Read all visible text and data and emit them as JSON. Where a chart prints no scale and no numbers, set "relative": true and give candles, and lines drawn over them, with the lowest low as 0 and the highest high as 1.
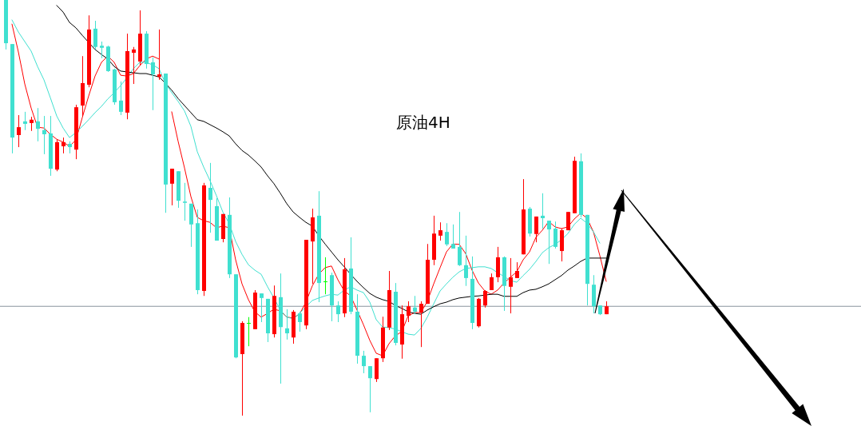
{
  "chart_data": {
    "type": "candlestick",
    "title": "原油4H",
    "relative": true,
    "categories": [
      null,
      null,
      null,
      null,
      null,
      null,
      null,
      null,
      null,
      null,
      null,
      null,
      null,
      null,
      null,
      null,
      null,
      null,
      null,
      null,
      null,
      null,
      null,
      null,
      null,
      null,
      null,
      null,
      null,
      null,
      null,
      null,
      null,
      null,
      null,
      null,
      null,
      null,
      null,
      null,
      null,
      null,
      null,
      null,
      null,
      null,
      null,
      null,
      null,
      null,
      null,
      null,
      null,
      null,
      null,
      null,
      null,
      null,
      null,
      null,
      null,
      null,
      null,
      null,
      null,
      null,
      null,
      null,
      null,
      null,
      null,
      null,
      null,
      null,
      null,
      null,
      null,
      null,
      null,
      null,
      null,
      null,
      null,
      null,
      null,
      null,
      null,
      null,
      null,
      null,
      null,
      null,
      null,
      null,
      null
    ],
    "ohlc": [
      [
        1.0,
        1.0,
        0.881,
        0.896
      ],
      [
        0.894,
        0.894,
        0.631,
        0.669
      ],
      [
        0.675,
        0.723,
        0.646,
        0.694
      ],
      [
        0.708,
        0.731,
        0.687,
        0.702
      ],
      [
        0.704,
        0.719,
        0.685,
        0.712
      ],
      [
        0.708,
        0.74,
        0.66,
        0.69
      ],
      [
        0.687,
        0.721,
        0.629,
        0.677
      ],
      [
        0.679,
        0.721,
        0.577,
        0.594
      ],
      [
        0.592,
        0.665,
        0.588,
        0.658
      ],
      [
        0.648,
        0.669,
        0.631,
        0.658
      ],
      [
        0.654,
        0.66,
        0.631,
        0.646
      ],
      [
        0.64,
        0.748,
        0.617,
        0.742
      ],
      [
        0.746,
        0.865,
        0.721,
        0.8
      ],
      [
        0.796,
        0.963,
        0.79,
        0.929
      ],
      [
        0.931,
        0.95,
        0.881,
        0.887
      ],
      [
        0.89,
        0.9,
        0.86,
        0.885
      ],
      [
        0.888,
        0.89,
        0.827,
        0.829
      ],
      [
        0.833,
        0.835,
        0.748,
        0.754
      ],
      [
        0.758,
        0.804,
        0.723,
        0.731
      ],
      [
        0.729,
        0.919,
        0.713,
        0.877
      ],
      [
        0.873,
        0.887,
        0.798,
        0.881
      ],
      [
        0.852,
        0.975,
        0.842,
        0.919
      ],
      [
        0.919,
        0.925,
        0.835,
        0.846
      ],
      [
        0.85,
        0.862,
        0.735,
        0.821
      ],
      [
        0.815,
        0.929,
        0.808,
        0.821
      ],
      [
        0.823,
        0.823,
        0.488,
        0.556
      ],
      [
        0.558,
        0.594,
        0.506,
        0.594
      ],
      [
        0.588,
        0.588,
        0.5,
        0.517
      ],
      [
        0.515,
        0.56,
        0.469,
        0.512
      ],
      [
        0.51,
        0.51,
        0.406,
        0.46
      ],
      [
        0.463,
        0.496,
        0.292,
        0.302
      ],
      [
        0.3,
        0.56,
        0.288,
        0.554
      ],
      [
        0.548,
        0.608,
        0.44,
        0.519
      ],
      [
        0.504,
        0.523,
        0.421,
        0.421
      ],
      [
        0.425,
        0.485,
        0.417,
        0.485
      ],
      [
        0.483,
        0.525,
        0.331,
        0.34
      ],
      [
        0.34,
        0.34,
        0.138,
        0.14
      ],
      [
        0.148,
        0.227,
        0.0,
        0.223
      ],
      [
        0.223,
        0.237,
        0.167,
        0.223
      ],
      [
        0.208,
        0.302,
        0.208,
        0.296
      ],
      [
        0.294,
        0.294,
        0.225,
        0.283
      ],
      [
        0.281,
        0.281,
        0.177,
        0.198
      ],
      [
        0.196,
        0.313,
        0.188,
        0.288
      ],
      [
        0.285,
        0.342,
        0.077,
        0.213
      ],
      [
        0.21,
        0.256,
        0.183,
        0.198
      ],
      [
        0.188,
        0.254,
        0.173,
        0.25
      ],
      [
        0.246,
        0.25,
        0.202,
        0.225
      ],
      [
        0.217,
        0.423,
        0.208,
        0.423
      ],
      [
        0.419,
        0.498,
        0.317,
        0.477
      ],
      [
        0.481,
        0.54,
        0.273,
        0.319
      ],
      [
        0.323,
        0.381,
        0.292,
        0.323
      ],
      [
        0.338,
        0.344,
        0.227,
        0.265
      ],
      [
        0.265,
        0.275,
        0.225,
        0.244
      ],
      [
        0.246,
        0.379,
        0.237,
        0.352
      ],
      [
        0.354,
        0.429,
        0.244,
        0.25
      ],
      [
        0.25,
        0.292,
        0.125,
        0.144
      ],
      [
        0.144,
        0.156,
        0.102,
        0.119
      ],
      [
        0.119,
        0.119,
        0.008,
        0.09
      ],
      [
        0.088,
        0.138,
        0.081,
        0.138
      ],
      [
        0.138,
        0.238,
        0.129,
        0.212
      ],
      [
        0.212,
        0.348,
        0.206,
        0.302
      ],
      [
        0.298,
        0.319,
        0.169,
        0.175
      ],
      [
        0.171,
        0.265,
        0.137,
        0.244
      ],
      [
        0.24,
        0.275,
        0.225,
        0.263
      ],
      [
        0.26,
        0.288,
        0.244,
        0.25
      ],
      [
        0.248,
        0.275,
        0.165,
        0.269
      ],
      [
        0.269,
        0.413,
        0.269,
        0.375
      ],
      [
        0.375,
        0.481,
        0.362,
        0.438
      ],
      [
        0.433,
        0.465,
        0.421,
        0.446
      ],
      [
        0.442,
        0.463,
        0.408,
        0.412
      ],
      [
        0.413,
        0.46,
        0.402,
        0.402
      ],
      [
        0.406,
        0.49,
        0.36,
        0.362
      ],
      [
        0.362,
        0.433,
        0.312,
        0.331
      ],
      [
        0.329,
        0.383,
        0.208,
        0.223
      ],
      [
        0.215,
        0.283,
        0.212,
        0.281
      ],
      [
        0.265,
        0.302,
        0.26,
        0.3
      ],
      [
        0.302,
        0.342,
        0.302,
        0.333
      ],
      [
        0.333,
        0.406,
        0.321,
        0.381
      ],
      [
        0.381,
        0.383,
        0.252,
        0.312
      ],
      [
        0.31,
        0.379,
        0.246,
        0.333
      ],
      [
        0.331,
        0.369,
        0.331,
        0.348
      ],
      [
        0.388,
        0.569,
        0.388,
        0.496
      ],
      [
        0.498,
        0.502,
        0.431,
        0.438
      ],
      [
        0.437,
        0.479,
        0.417,
        0.479
      ],
      [
        0.481,
        0.535,
        0.45,
        0.475
      ],
      [
        0.469,
        0.469,
        0.365,
        0.448
      ],
      [
        0.45,
        0.467,
        0.402,
        0.406
      ],
      [
        0.396,
        0.45,
        0.371,
        0.446
      ],
      [
        0.446,
        0.49,
        0.446,
        0.49
      ],
      [
        0.487,
        0.623,
        0.487,
        0.613
      ],
      [
        0.612,
        0.631,
        0.477,
        0.483
      ],
      [
        0.483,
        0.483,
        0.265,
        0.317
      ],
      [
        0.315,
        0.338,
        0.246,
        0.263
      ],
      [
        0.265,
        0.265,
        0.242,
        0.244
      ],
      [
        0.244,
        0.275,
        0.244,
        0.263
      ]
    ],
    "colors": [
      "#40e0d0",
      "#40e0d0",
      "#ff0000",
      "#40e0d0",
      "#ff0000",
      "#40e0d0",
      "#40e0d0",
      "#40e0d0",
      "#ff0000",
      "#ff0000",
      "#40e0d0",
      "#ff0000",
      "#ff0000",
      "#ff0000",
      "#40e0d0",
      "#40e0d0",
      "#40e0d0",
      "#40e0d0",
      "#40e0d0",
      "#ff0000",
      "#ff0000",
      "#ff0000",
      "#40e0d0",
      "#40e0d0",
      "#ff0000",
      "#40e0d0",
      "#ff0000",
      "#40e0d0",
      "#40e0d0",
      "#40e0d0",
      "#40e0d0",
      "#ff0000",
      "#40e0d0",
      "#40e0d0",
      "#ff0000",
      "#40e0d0",
      "#40e0d0",
      "#ff0000",
      "#00ff00",
      "#ff0000",
      "#40e0d0",
      "#40e0d0",
      "#ff0000",
      "#40e0d0",
      "#40e0d0",
      "#ff0000",
      "#40e0d0",
      "#ff0000",
      "#ff0000",
      "#40e0d0",
      "#00ff00",
      "#40e0d0",
      "#40e0d0",
      "#ff0000",
      "#40e0d0",
      "#40e0d0",
      "#40e0d0",
      "#40e0d0",
      "#ff0000",
      "#ff0000",
      "#ff0000",
      "#40e0d0",
      "#ff0000",
      "#ff0000",
      "#40e0d0",
      "#ff0000",
      "#ff0000",
      "#ff0000",
      "#ff0000",
      "#40e0d0",
      "#40e0d0",
      "#40e0d0",
      "#40e0d0",
      "#40e0d0",
      "#ff0000",
      "#ff0000",
      "#ff0000",
      "#ff0000",
      "#40e0d0",
      "#ff0000",
      "#ff0000",
      "#ff0000",
      "#40e0d0",
      "#ff0000",
      "#40e0d0",
      "#40e0d0",
      "#40e0d0",
      "#ff0000",
      "#ff0000",
      "#ff0000",
      "#40e0d0",
      "#40e0d0",
      "#40e0d0",
      "#40e0d0",
      "#ff0000"
    ],
    "series": [
      {
        "type": "line",
        "color": "#ff0000",
        "values": [
          null,
          0.942,
          0.875,
          0.798,
          0.74,
          0.694,
          0.692,
          0.677,
          0.665,
          0.658,
          0.648,
          0.663,
          0.717,
          0.769,
          0.817,
          0.85,
          0.865,
          0.85,
          0.819,
          0.817,
          0.823,
          0.842,
          0.858,
          0.865,
          0.858,
          null,
          0.731,
          0.66,
          0.596,
          0.527,
          0.477,
          0.469,
          0.465,
          0.452,
          0.456,
          0.452,
          0.375,
          0.317,
          0.279,
          0.25,
          0.237,
          0.246,
          0.256,
          0.252,
          0.237,
          0.235,
          0.244,
          0.273,
          0.312,
          0.34,
          0.356,
          0.36,
          0.327,
          0.3,
          0.288,
          0.254,
          0.219,
          0.181,
          0.15,
          0.144,
          0.173,
          0.192,
          0.202,
          0.24,
          0.248,
          0.248,
          0.275,
          0.317,
          0.356,
          0.394,
          0.413,
          0.412,
          0.39,
          0.35,
          0.319,
          0.3,
          0.292,
          0.302,
          0.319,
          0.333,
          0.346,
          0.375,
          0.394,
          0.429,
          0.446,
          0.467,
          0.454,
          0.45,
          0.454,
          0.473,
          0.487,
          0.475,
          0.442,
          0.385,
          0.323
        ]
      },
      {
        "type": "line",
        "color": "#40e0d0",
        "values": [
          null,
          0.952,
          0.923,
          0.9,
          0.877,
          0.84,
          0.808,
          0.765,
          0.721,
          0.692,
          0.669,
          0.681,
          0.696,
          0.712,
          0.729,
          0.744,
          0.762,
          0.777,
          0.794,
          0.813,
          0.835,
          0.85,
          0.85,
          0.844,
          0.835,
          0.8,
          0.777,
          0.756,
          0.733,
          0.696,
          0.635,
          0.598,
          0.565,
          0.529,
          0.49,
          0.462,
          0.419,
          0.388,
          0.363,
          0.35,
          0.34,
          0.31,
          0.283,
          0.254,
          0.237,
          0.233,
          0.246,
          0.262,
          0.277,
          0.283,
          0.288,
          0.292,
          0.29,
          0.302,
          0.31,
          0.302,
          0.296,
          0.273,
          0.231,
          0.213,
          0.212,
          0.208,
          0.202,
          0.196,
          0.194,
          0.21,
          0.237,
          0.269,
          0.3,
          0.317,
          0.333,
          0.346,
          0.354,
          0.356,
          0.358,
          0.358,
          0.354,
          0.344,
          0.335,
          0.325,
          0.321,
          0.337,
          0.352,
          0.371,
          0.392,
          0.404,
          0.412,
          0.423,
          0.438,
          0.46,
          0.475,
          0.463,
          0.442,
          0.415,
          null
        ]
      },
      {
        "type": "line",
        "color": "#000000",
        "values": [
          null,
          null,
          null,
          null,
          null,
          null,
          null,
          null,
          0.987,
          0.971,
          0.946,
          0.933,
          0.915,
          0.898,
          0.881,
          0.869,
          0.858,
          0.84,
          0.829,
          0.827,
          0.825,
          0.823,
          0.823,
          0.819,
          0.815,
          0.8,
          0.783,
          0.763,
          0.746,
          0.729,
          0.712,
          0.708,
          0.7,
          0.692,
          0.683,
          0.673,
          0.654,
          0.638,
          0.627,
          0.613,
          0.598,
          0.577,
          0.558,
          0.535,
          0.51,
          0.49,
          0.477,
          0.465,
          0.456,
          0.433,
          0.413,
          0.394,
          0.375,
          0.358,
          0.34,
          0.323,
          0.308,
          0.294,
          0.285,
          0.279,
          0.275,
          0.265,
          0.258,
          0.25,
          0.246,
          0.244,
          0.254,
          0.262,
          0.269,
          0.273,
          0.279,
          0.283,
          0.285,
          0.287,
          0.288,
          0.29,
          0.292,
          0.292,
          0.287,
          0.287,
          0.287,
          0.296,
          0.302,
          0.304,
          0.31,
          0.317,
          0.327,
          0.337,
          0.35,
          0.36,
          0.371,
          0.379,
          0.379,
          0.379,
          0.379
        ]
      }
    ],
    "ref_lines": [
      {
        "axis": "y",
        "value": 0.263,
        "color": "#8a949e"
      }
    ]
  }
}
